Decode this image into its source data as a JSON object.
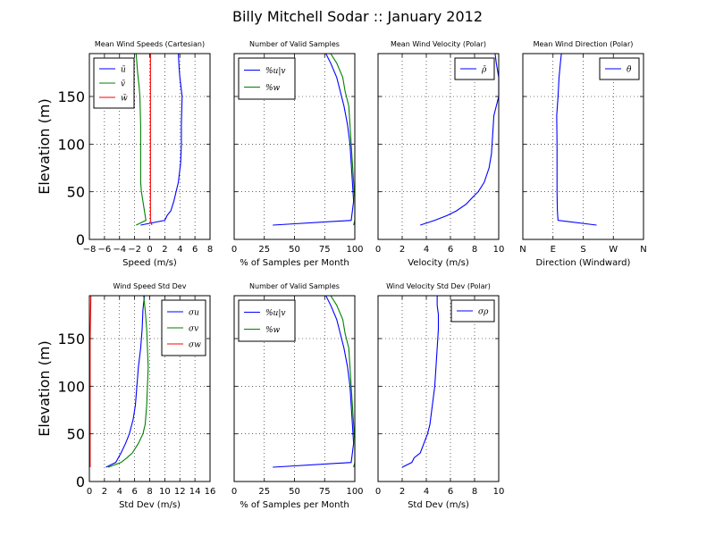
{
  "figure": {
    "suptitle": "Billy Mitchell Sodar :: January 2012"
  },
  "chart_data": [
    {
      "type": "line",
      "title": "Mean Wind Speeds (Cartesian)",
      "xlabel": "Speed (m/s)",
      "ylabel": "Elevation (m)",
      "xlim": [
        -8,
        8
      ],
      "ylim": [
        0,
        195
      ],
      "xticks": [
        -8,
        -6,
        -4,
        -2,
        0,
        2,
        4,
        6,
        8
      ],
      "xticklabels": [
        "−8",
        "−6",
        "−4",
        "−2",
        "0",
        "2",
        "4",
        "6",
        "8"
      ],
      "yticks": [
        0,
        50,
        100,
        150
      ],
      "yticklabels": [
        "0",
        "50",
        "100",
        "150"
      ],
      "grid": true,
      "legend_position": "top-left",
      "series": [
        {
          "name": "ū",
          "color": "#0000ff",
          "points": [
            [
              -1.2,
              15
            ],
            [
              2,
              20
            ],
            [
              2.3,
              25
            ],
            [
              2.8,
              30
            ],
            [
              3.2,
              40
            ],
            [
              3.5,
              50
            ],
            [
              3.8,
              60
            ],
            [
              4.1,
              80
            ],
            [
              4.2,
              100
            ],
            [
              4.2,
              120
            ],
            [
              4.3,
              150
            ],
            [
              4,
              170
            ],
            [
              3.9,
              180
            ],
            [
              3.8,
              195
            ]
          ]
        },
        {
          "name": "v̄",
          "color": "#008000",
          "points": [
            [
              -1.8,
              15
            ],
            [
              -0.5,
              20
            ],
            [
              -0.7,
              30
            ],
            [
              -0.9,
              40
            ],
            [
              -1.1,
              50
            ],
            [
              -1.2,
              60
            ],
            [
              -1.2,
              80
            ],
            [
              -1.2,
              100
            ],
            [
              -1.2,
              120
            ],
            [
              -1.3,
              150
            ],
            [
              -1.4,
              160
            ],
            [
              -1.6,
              175
            ],
            [
              -1.8,
              195
            ]
          ]
        },
        {
          "name": "w̄",
          "color": "#ff0000",
          "points": [
            [
              0.3,
              15
            ],
            [
              0.1,
              20
            ],
            [
              0.1,
              50
            ],
            [
              0.1,
              100
            ],
            [
              0.1,
              150
            ],
            [
              0.1,
              195
            ]
          ]
        }
      ]
    },
    {
      "type": "line",
      "title": "Number of Valid Samples",
      "xlabel": "% of Samples per Month",
      "xlim": [
        0,
        100
      ],
      "ylim": [
        0,
        195
      ],
      "xticks": [
        0,
        25,
        50,
        75,
        100
      ],
      "xticklabels": [
        "0",
        "25",
        "50",
        "75",
        "100"
      ],
      "grid": true,
      "legend_position": "top-left",
      "series": [
        {
          "name": "%u|v",
          "color": "#0000ff",
          "points": [
            [
              32,
              15
            ],
            [
              97,
              20
            ],
            [
              98,
              30
            ],
            [
              99,
              40
            ],
            [
              98,
              60
            ],
            [
              97,
              80
            ],
            [
              96,
              100
            ],
            [
              94,
              120
            ],
            [
              91,
              140
            ],
            [
              88,
              155
            ],
            [
              85,
              170
            ],
            [
              80,
              185
            ],
            [
              76,
              195
            ]
          ]
        },
        {
          "name": "%w",
          "color": "#008000",
          "points": [
            [
              99,
              15
            ],
            [
              100,
              20
            ],
            [
              100,
              30
            ],
            [
              100,
              40
            ],
            [
              99,
              60
            ],
            [
              98,
              80
            ],
            [
              97,
              100
            ],
            [
              96,
              120
            ],
            [
              95,
              140
            ],
            [
              92,
              155
            ],
            [
              90,
              170
            ],
            [
              85,
              185
            ],
            [
              80,
              195
            ]
          ]
        }
      ]
    },
    {
      "type": "line",
      "title": "Mean Wind Velocity (Polar)",
      "xlabel": "Velocity (m/s)",
      "xlim": [
        0,
        10
      ],
      "ylim": [
        0,
        195
      ],
      "xticks": [
        0,
        2,
        4,
        6,
        8,
        10
      ],
      "xticklabels": [
        "0",
        "2",
        "4",
        "6",
        "8",
        "10"
      ],
      "grid": true,
      "legend_position": "top-right",
      "series": [
        {
          "name": "ρ̄",
          "color": "#0000ff",
          "points": [
            [
              3.5,
              15
            ],
            [
              4.7,
              20
            ],
            [
              5.7,
              25
            ],
            [
              6.5,
              30
            ],
            [
              7.3,
              37
            ],
            [
              7.9,
              45
            ],
            [
              8.3,
              50
            ],
            [
              8.8,
              60
            ],
            [
              9.2,
              75
            ],
            [
              9.4,
              90
            ],
            [
              9.5,
              110
            ],
            [
              9.6,
              130
            ],
            [
              10,
              150
            ],
            [
              10,
              170
            ],
            [
              9.8,
              185
            ],
            [
              9.7,
              195
            ]
          ]
        }
      ]
    },
    {
      "type": "line",
      "title": "Mean Wind Direction (Polar)",
      "xlabel": "Direction (Windward)",
      "xlim": [
        0,
        360
      ],
      "ylim": [
        0,
        195
      ],
      "xticks": [
        0,
        90,
        180,
        270,
        360
      ],
      "xticklabels": [
        "N",
        "E",
        "S",
        "W",
        "N"
      ],
      "grid": true,
      "legend_position": "top-right",
      "series": [
        {
          "name": "θ̄",
          "color": "#0000ff",
          "points": [
            [
              220,
              15
            ],
            [
              105,
              20
            ],
            [
              103,
              30
            ],
            [
              102,
              50
            ],
            [
              102,
              80
            ],
            [
              102,
              100
            ],
            [
              101,
              130
            ],
            [
              105,
              150
            ],
            [
              108,
              170
            ],
            [
              112,
              185
            ],
            [
              115,
              195
            ]
          ]
        }
      ]
    },
    {
      "type": "line",
      "title": "Wind Speed Std Dev",
      "xlabel": "Std Dev (m/s)",
      "ylabel": "Elevation (m)",
      "xlim": [
        0,
        16
      ],
      "ylim": [
        0,
        195
      ],
      "xticks": [
        0,
        2,
        4,
        6,
        8,
        10,
        12,
        14,
        16
      ],
      "xticklabels": [
        "0",
        "2",
        "4",
        "6",
        "8",
        "10",
        "12",
        "14",
        "16"
      ],
      "yticks": [
        0,
        50,
        100,
        150
      ],
      "yticklabels": [
        "0",
        "50",
        "100",
        "150"
      ],
      "grid": true,
      "legend_position": "top-right",
      "series": [
        {
          "name": "σu",
          "color": "#0000ff",
          "points": [
            [
              2.2,
              15
            ],
            [
              3.5,
              20
            ],
            [
              4.2,
              30
            ],
            [
              4.8,
              40
            ],
            [
              5.3,
              50
            ],
            [
              5.8,
              65
            ],
            [
              6.1,
              80
            ],
            [
              6.3,
              100
            ],
            [
              6.5,
              120
            ],
            [
              6.8,
              140
            ],
            [
              7,
              160
            ],
            [
              7.1,
              180
            ],
            [
              7.3,
              195
            ]
          ]
        },
        {
          "name": "σv",
          "color": "#008000",
          "points": [
            [
              2.5,
              15
            ],
            [
              4.2,
              20
            ],
            [
              5,
              25
            ],
            [
              5.7,
              30
            ],
            [
              6.5,
              40
            ],
            [
              7.1,
              50
            ],
            [
              7.4,
              60
            ],
            [
              7.6,
              80
            ],
            [
              7.7,
              100
            ],
            [
              7.8,
              120
            ],
            [
              7.7,
              140
            ],
            [
              7.6,
              160
            ],
            [
              7.4,
              180
            ],
            [
              7.2,
              195
            ]
          ]
        },
        {
          "name": "σw",
          "color": "#ff0000",
          "points": [
            [
              0.1,
              15
            ],
            [
              0.1,
              50
            ],
            [
              0.1,
              100
            ],
            [
              0.1,
              150
            ],
            [
              0.2,
              195
            ]
          ]
        }
      ]
    },
    {
      "type": "line",
      "title": "Number of Valid Samples",
      "xlabel": "% of Samples per Month",
      "xlim": [
        0,
        100
      ],
      "ylim": [
        0,
        195
      ],
      "xticks": [
        0,
        25,
        50,
        75,
        100
      ],
      "xticklabels": [
        "0",
        "25",
        "50",
        "75",
        "100"
      ],
      "grid": true,
      "legend_position": "top-left",
      "series": [
        {
          "name": "%u|v",
          "color": "#0000ff",
          "points": [
            [
              32,
              15
            ],
            [
              97,
              20
            ],
            [
              98,
              30
            ],
            [
              99,
              40
            ],
            [
              98,
              60
            ],
            [
              97,
              80
            ],
            [
              96,
              100
            ],
            [
              94,
              120
            ],
            [
              91,
              140
            ],
            [
              88,
              155
            ],
            [
              85,
              170
            ],
            [
              80,
              185
            ],
            [
              76,
              195
            ]
          ]
        },
        {
          "name": "%w",
          "color": "#008000",
          "points": [
            [
              99,
              15
            ],
            [
              100,
              20
            ],
            [
              100,
              30
            ],
            [
              100,
              40
            ],
            [
              99,
              60
            ],
            [
              98,
              80
            ],
            [
              97,
              100
            ],
            [
              96,
              120
            ],
            [
              95,
              140
            ],
            [
              92,
              155
            ],
            [
              90,
              170
            ],
            [
              85,
              185
            ],
            [
              80,
              195
            ]
          ]
        }
      ]
    },
    {
      "type": "line",
      "title": "Wind Velocity Std Dev (Polar)",
      "xlabel": "Std Dev (m/s)",
      "xlim": [
        0,
        10
      ],
      "ylim": [
        0,
        195
      ],
      "xticks": [
        0,
        2,
        4,
        6,
        8,
        10
      ],
      "xticklabels": [
        "0",
        "2",
        "4",
        "6",
        "8",
        "10"
      ],
      "grid": true,
      "legend_position": "top-right",
      "series": [
        {
          "name": "σρ",
          "color": "#0000ff",
          "points": [
            [
              2,
              15
            ],
            [
              2.8,
              20
            ],
            [
              3,
              25
            ],
            [
              3.5,
              30
            ],
            [
              3.8,
              40
            ],
            [
              4.1,
              50
            ],
            [
              4.3,
              60
            ],
            [
              4.5,
              80
            ],
            [
              4.7,
              100
            ],
            [
              4.8,
              120
            ],
            [
              4.9,
              140
            ],
            [
              5,
              160
            ],
            [
              5,
              175
            ],
            [
              4.9,
              185
            ],
            [
              4.9,
              195
            ]
          ]
        }
      ]
    }
  ]
}
